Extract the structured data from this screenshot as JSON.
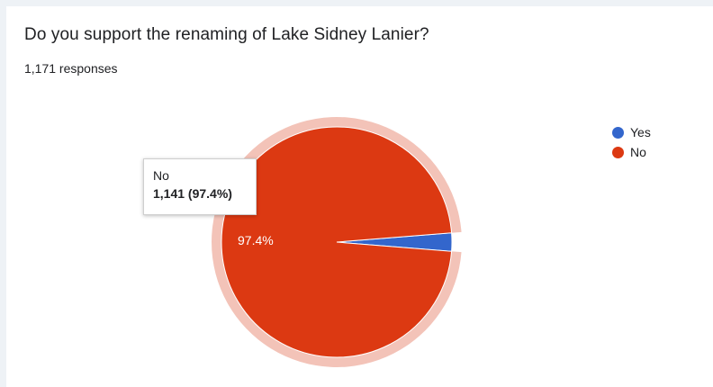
{
  "question": "Do you support the renaming of Lake Sidney Lanier?",
  "responses_text": "1,171 responses",
  "chart_data": {
    "type": "pie",
    "total": 1171,
    "slices": [
      {
        "label": "Yes",
        "value": 30,
        "percent": 2.6,
        "color": "#3366cc"
      },
      {
        "label": "No",
        "value": 1141,
        "percent": 97.4,
        "color": "#dc3912"
      }
    ],
    "highlighted_slice": "No",
    "data_labels": [
      "97.4%"
    ],
    "legend": [
      "Yes",
      "No"
    ],
    "legend_position": "right"
  },
  "tooltip": {
    "label": "No",
    "value": "1,141 (97.4%)"
  }
}
